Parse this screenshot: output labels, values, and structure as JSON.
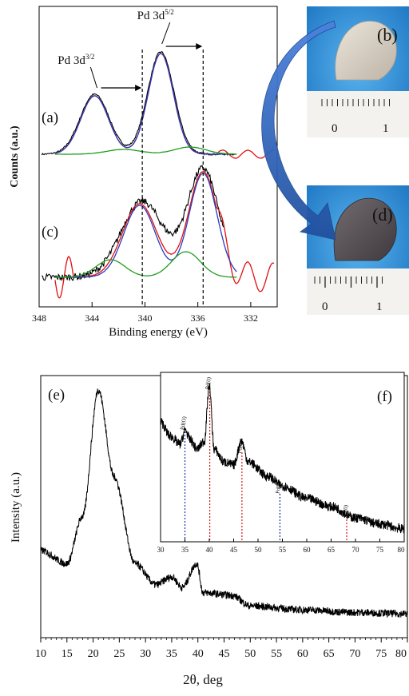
{
  "chart_data": [
    {
      "type": "line",
      "panel": "xps",
      "xlabel": "Binding energy (eV)",
      "ylabel": "Counts (a.u.)",
      "xlim": [
        348,
        330
      ],
      "x_ticks": [
        348,
        344,
        340,
        336,
        332
      ],
      "reverse_x": true,
      "panel_labels": [
        "(a)",
        "(c)"
      ],
      "peak_labels": [
        {
          "base": "Pd 3d",
          "sup": "3/2",
          "x": 343.8,
          "text_x": 345.2,
          "arrow_to": 340.2
        },
        {
          "base": "Pd 3d",
          "sup": "5/2",
          "x": 338.9,
          "text_x": 339.2,
          "arrow_to": 335.6
        }
      ],
      "reference_lines": [
        340.2,
        335.6
      ],
      "series": [
        {
          "panel": "(a)",
          "role": "raw",
          "color": "#000000",
          "peaks": [
            {
              "center": 343.8,
              "height": 75,
              "width": 1.1
            },
            {
              "center": 338.8,
              "height": 128,
              "width": 1.0
            }
          ]
        },
        {
          "panel": "(a)",
          "role": "fit",
          "color": "#e01010",
          "peaks": [
            {
              "center": 343.8,
              "height": 73,
              "width": 1.05
            },
            {
              "center": 338.8,
              "height": 126,
              "width": 0.95
            }
          ]
        },
        {
          "panel": "(a)",
          "role": "component",
          "color": "#2a3cc0",
          "peaks": [
            {
              "center": 343.8,
              "height": 73,
              "width": 1.05
            },
            {
              "center": 338.8,
              "height": 126,
              "width": 0.95
            }
          ]
        },
        {
          "panel": "(a)",
          "role": "component",
          "color": "#1e9e1e",
          "peaks": [
            {
              "center": 341.6,
              "height": 6,
              "width": 1.3
            },
            {
              "center": 336.6,
              "height": 9,
              "width": 1.2
            }
          ]
        },
        {
          "panel": "(c)",
          "role": "raw",
          "color": "#000000",
          "peaks": [
            {
              "center": 340.2,
              "height": 95,
              "width": 1.6
            },
            {
              "center": 335.6,
              "height": 135,
              "width": 1.2
            }
          ]
        },
        {
          "panel": "(c)",
          "role": "fit",
          "color": "#e01010",
          "peaks": [
            {
              "center": 340.4,
              "height": 92,
              "width": 1.3
            },
            {
              "center": 335.6,
              "height": 132,
              "width": 1.1
            }
          ]
        },
        {
          "panel": "(c)",
          "role": "component",
          "color": "#2a3cc0",
          "peaks": [
            {
              "center": 340.4,
              "height": 90,
              "width": 1.2
            },
            {
              "center": 335.6,
              "height": 130,
              "width": 1.05
            }
          ]
        },
        {
          "panel": "(c)",
          "role": "component",
          "color": "#1e9e1e",
          "peaks": [
            {
              "center": 342.6,
              "height": 22,
              "width": 1.1
            },
            {
              "center": 336.9,
              "height": 32,
              "width": 1.1
            }
          ]
        }
      ]
    },
    {
      "type": "image",
      "panel": "photos",
      "panel_labels": [
        "(b)",
        "(d)"
      ],
      "ruler_ticks": [
        "0",
        "1"
      ],
      "colors": {
        "sample_before": "#d9d0c4",
        "sample_after": "#5a5458",
        "background": "#2e90d8",
        "arrow": "#2f66c8"
      }
    },
    {
      "type": "line",
      "panel": "xrd",
      "panel_label": "(e)",
      "xlabel": "2θ, deg",
      "ylabel": "Intensity (a.u.)",
      "xlim": [
        10,
        80
      ],
      "x_ticks": [
        10,
        15,
        20,
        25,
        30,
        35,
        40,
        45,
        50,
        55,
        60,
        65,
        70,
        75,
        80
      ],
      "baseline_points": [
        [
          10,
          0.27
        ],
        [
          15,
          0.22
        ],
        [
          18,
          0.4
        ],
        [
          21,
          0.88
        ],
        [
          24,
          0.55
        ],
        [
          28,
          0.22
        ],
        [
          32,
          0.14
        ],
        [
          35,
          0.17
        ],
        [
          37,
          0.13
        ],
        [
          39.8,
          0.22
        ],
        [
          41,
          0.11
        ],
        [
          46.5,
          0.1
        ],
        [
          50,
          0.06
        ],
        [
          60,
          0.045
        ],
        [
          70,
          0.035
        ],
        [
          80,
          0.03
        ]
      ],
      "inset": {
        "panel_label": "(f)",
        "xlim": [
          30,
          80
        ],
        "x_ticks": [
          30,
          35,
          40,
          45,
          50,
          55,
          60,
          65,
          70,
          75,
          80
        ],
        "curve_points": [
          [
            30,
            0.72
          ],
          [
            32,
            0.63
          ],
          [
            34,
            0.58
          ],
          [
            35.1,
            0.67
          ],
          [
            36,
            0.61
          ],
          [
            37.5,
            0.55
          ],
          [
            39,
            0.6
          ],
          [
            40,
            0.95
          ],
          [
            41,
            0.55
          ],
          [
            43,
            0.47
          ],
          [
            45,
            0.45
          ],
          [
            46.6,
            0.6
          ],
          [
            48,
            0.47
          ],
          [
            52,
            0.38
          ],
          [
            55,
            0.32
          ],
          [
            60,
            0.24
          ],
          [
            65,
            0.19
          ],
          [
            70,
            0.12
          ],
          [
            75,
            0.08
          ],
          [
            80,
            0.05
          ]
        ],
        "reflections": [
          {
            "label": "Pd(O)",
            "x": 35,
            "color": "#2233aa"
          },
          {
            "label": "Pd(0)",
            "x": 40.1,
            "color": "#dd1111"
          },
          {
            "label": "Pd(0)",
            "x": 46.7,
            "color": "#dd1111"
          },
          {
            "label": "PdO",
            "x": 54.5,
            "color": "#2233aa"
          },
          {
            "label": "Pd(0)",
            "x": 68.2,
            "color": "#dd1111"
          }
        ]
      }
    }
  ]
}
